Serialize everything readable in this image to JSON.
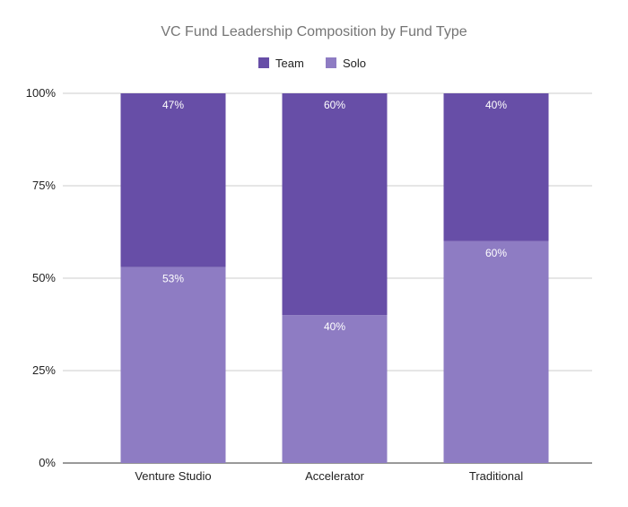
{
  "chart_data": {
    "type": "bar",
    "stacked": "percent",
    "title": "VC Fund Leadership Composition by Fund Type",
    "categories": [
      "Venture Studio",
      "Accelerator",
      "Traditional"
    ],
    "series": [
      {
        "name": "Solo",
        "values": [
          53,
          40,
          60
        ],
        "labels": [
          "53%",
          "40%",
          "60%"
        ],
        "color": "#8e7cc3"
      },
      {
        "name": "Team",
        "values": [
          47,
          60,
          40
        ],
        "labels": [
          "47%",
          "60%",
          "40%"
        ],
        "color": "#674ea7"
      }
    ],
    "legend": {
      "position": "top",
      "items": [
        {
          "name": "Team",
          "color": "#674ea7"
        },
        {
          "name": "Solo",
          "color": "#8e7cc3"
        }
      ]
    },
    "ylim": [
      0,
      100
    ],
    "yticks": [
      {
        "value": 0,
        "label": "0%"
      },
      {
        "value": 25,
        "label": "25%"
      },
      {
        "value": 50,
        "label": "50%"
      },
      {
        "value": 75,
        "label": "75%"
      },
      {
        "value": 100,
        "label": "100%"
      }
    ],
    "grid": true,
    "xlabel": "",
    "ylabel": ""
  }
}
